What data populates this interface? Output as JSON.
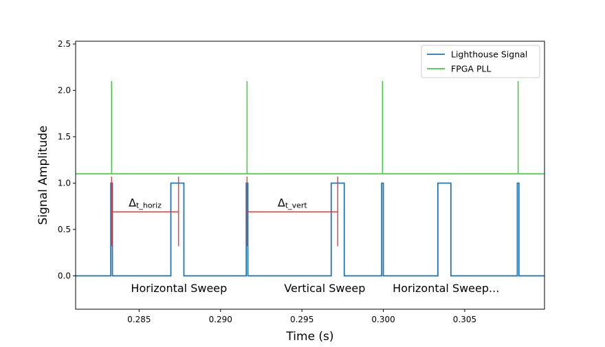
{
  "chart_data": {
    "type": "line",
    "xlabel": "Time (s)",
    "ylabel": "Signal Amplitude",
    "xlim": [
      0.2811,
      0.3099
    ],
    "ylim": [
      -0.36,
      2.53
    ],
    "xticks": [
      0.285,
      0.29,
      0.295,
      0.3,
      0.305
    ],
    "xtick_labels": [
      "0.285",
      "0.290",
      "0.295",
      "0.300",
      "0.305"
    ],
    "yticks": [
      0.0,
      0.5,
      1.0,
      1.5,
      2.0,
      2.5
    ],
    "ytick_labels": [
      "0.0",
      "0.5",
      "1.0",
      "1.5",
      "2.0",
      "2.5"
    ],
    "legend": {
      "position": "top-right",
      "entries": [
        "Lighthouse Signal",
        "FPGA PLL"
      ]
    },
    "series": [
      {
        "name": "Lighthouse Signal",
        "color": "#1f77b4",
        "points": [
          [
            0.2811,
            0.0
          ],
          [
            0.28326,
            0.0
          ],
          [
            0.28326,
            1.0
          ],
          [
            0.28336,
            1.0
          ],
          [
            0.28336,
            0.0
          ],
          [
            0.28695,
            0.0
          ],
          [
            0.28695,
            1.0
          ],
          [
            0.28775,
            1.0
          ],
          [
            0.28775,
            0.0
          ],
          [
            0.29158,
            0.0
          ],
          [
            0.29158,
            1.0
          ],
          [
            0.29168,
            1.0
          ],
          [
            0.29168,
            0.0
          ],
          [
            0.2968,
            0.0
          ],
          [
            0.2968,
            1.0
          ],
          [
            0.2976,
            1.0
          ],
          [
            0.2976,
            0.0
          ],
          [
            0.2999,
            0.0
          ],
          [
            0.2999,
            1.0
          ],
          [
            0.3,
            1.0
          ],
          [
            0.3,
            0.0
          ],
          [
            0.30335,
            0.0
          ],
          [
            0.30335,
            1.0
          ],
          [
            0.30415,
            1.0
          ],
          [
            0.30415,
            0.0
          ],
          [
            0.30823,
            0.0
          ],
          [
            0.30823,
            1.0
          ],
          [
            0.30833,
            1.0
          ],
          [
            0.30833,
            0.0
          ],
          [
            0.3099,
            0.0
          ]
        ]
      },
      {
        "name": "FPGA PLL",
        "color": "#44cc44",
        "baseline": 1.1,
        "spike_top": 2.1,
        "spikes": [
          0.28331,
          0.29163,
          0.29995,
          0.30828
        ]
      }
    ],
    "annotations": {
      "brackets": [
        {
          "label_main": "Δ",
          "label_sub": "t_horiz",
          "x_start": 0.28331,
          "x_end": 0.28742,
          "y": 0.69,
          "y_top": 1.07,
          "y_bottom": 0.32,
          "color": "#e83030"
        },
        {
          "label_main": "Δ",
          "label_sub": "t_vert",
          "x_start": 0.29163,
          "x_end": 0.2972,
          "y": 0.69,
          "y_top": 1.07,
          "y_bottom": 0.32,
          "color": "#e83030"
        }
      ],
      "sweep_labels": [
        {
          "text": "Horizontal Sweep",
          "x": 0.28745,
          "y": -0.13
        },
        {
          "text": "Vertical Sweep",
          "x": 0.2964,
          "y": -0.13
        },
        {
          "text": "Horizontal Sweep...",
          "x": 0.30385,
          "y": -0.13
        }
      ]
    }
  }
}
